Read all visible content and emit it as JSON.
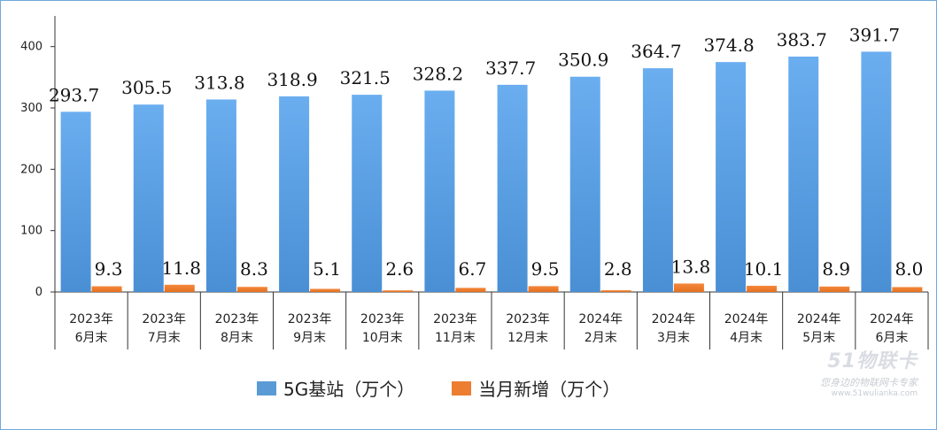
{
  "chart_data": {
    "type": "bar",
    "categories": [
      [
        "2023年",
        "6月末"
      ],
      [
        "2023年",
        "7月末"
      ],
      [
        "2023年",
        "8月末"
      ],
      [
        "2023年",
        "9月末"
      ],
      [
        "2023年",
        "10月末"
      ],
      [
        "2023年",
        "11月末"
      ],
      [
        "2023年",
        "12月末"
      ],
      [
        "2024年",
        "2月末"
      ],
      [
        "2024年",
        "3月末"
      ],
      [
        "2024年",
        "4月末"
      ],
      [
        "2024年",
        "5月末"
      ],
      [
        "2024年",
        "6月末"
      ]
    ],
    "series": [
      {
        "name": "5G基站（万个）",
        "color": "#5b9bd5",
        "values": [
          293.7,
          305.5,
          313.8,
          318.9,
          321.5,
          328.2,
          337.7,
          350.9,
          364.7,
          374.8,
          383.7,
          391.7
        ]
      },
      {
        "name": "当月新增（万个）",
        "color": "#ed7d31",
        "values": [
          9.3,
          11.8,
          8.3,
          5.1,
          2.6,
          6.7,
          9.5,
          2.8,
          13.8,
          10.1,
          8.9,
          8.0
        ]
      }
    ],
    "ylim": [
      0,
      450
    ],
    "yticks": [
      0,
      100,
      200,
      300,
      400
    ],
    "grid": false,
    "legend_position": "bottom"
  },
  "watermark": {
    "logo": "51物联卡",
    "slogan": "您身边的物联网卡专家",
    "url": "www.51wulianka.com"
  }
}
